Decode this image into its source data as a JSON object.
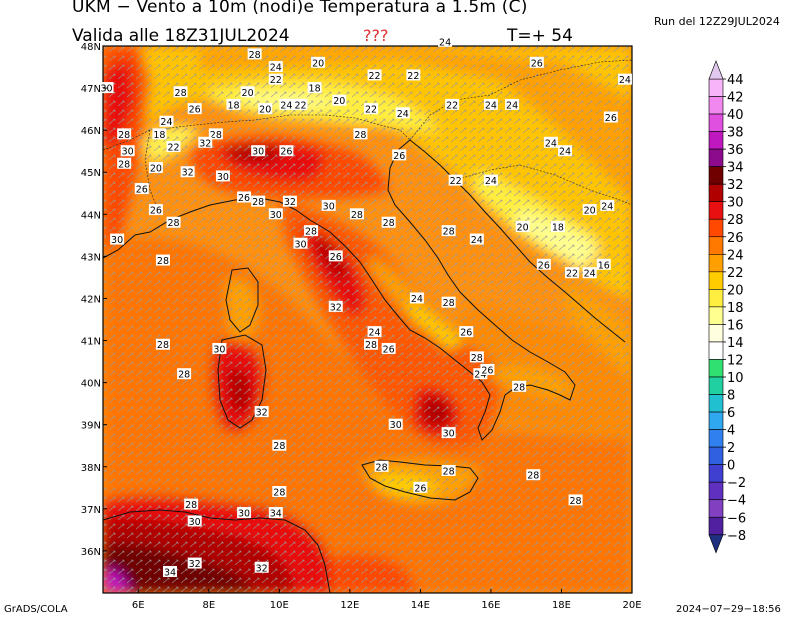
{
  "header": {
    "title": "UKM − Vento a 10m (nodi)e Temperatura a 1.5m (C)",
    "valid": "Valida alle 18Z31JUL2024",
    "qqq": "???",
    "timestep": "T=+ 54",
    "run": "Run del 12Z29JUL2024"
  },
  "footer": {
    "left": "GrADS/COLA",
    "right": "2024−07−29−18:56"
  },
  "map": {
    "lon_range": [
      5,
      20
    ],
    "lat_range": [
      35,
      48
    ],
    "lon_ticks": [
      "6E",
      "8E",
      "10E",
      "12E",
      "14E",
      "16E",
      "18E",
      "20E"
    ],
    "lat_ticks": [
      "48N",
      "47N",
      "46N",
      "45N",
      "44N",
      "43N",
      "42N",
      "41N",
      "40N",
      "39N",
      "38N",
      "37N",
      "36N"
    ],
    "contour_labels": [
      {
        "lon": 9.3,
        "lat": 47.8,
        "v": "28"
      },
      {
        "lon": 9.9,
        "lat": 47.5,
        "v": "24"
      },
      {
        "lon": 12.7,
        "lat": 47.3,
        "v": "22"
      },
      {
        "lon": 13.8,
        "lat": 47.3,
        "v": "22"
      },
      {
        "lon": 11.1,
        "lat": 47.6,
        "v": "20"
      },
      {
        "lon": 14.7,
        "lat": 48.1,
        "v": "24"
      },
      {
        "lon": 17.3,
        "lat": 47.6,
        "v": "26"
      },
      {
        "lon": 19.8,
        "lat": 47.2,
        "v": "24"
      },
      {
        "lon": 5.1,
        "lat": 47.0,
        "v": "30"
      },
      {
        "lon": 7.2,
        "lat": 46.9,
        "v": "28"
      },
      {
        "lon": 9.9,
        "lat": 47.2,
        "v": "22"
      },
      {
        "lon": 11.0,
        "lat": 47.0,
        "v": "18"
      },
      {
        "lon": 9.1,
        "lat": 46.9,
        "v": "20"
      },
      {
        "lon": 8.7,
        "lat": 46.6,
        "v": "18"
      },
      {
        "lon": 7.6,
        "lat": 46.5,
        "v": "26"
      },
      {
        "lon": 9.6,
        "lat": 46.5,
        "v": "20"
      },
      {
        "lon": 10.2,
        "lat": 46.6,
        "v": "24"
      },
      {
        "lon": 10.6,
        "lat": 46.6,
        "v": "22"
      },
      {
        "lon": 11.7,
        "lat": 46.7,
        "v": "20"
      },
      {
        "lon": 12.6,
        "lat": 46.5,
        "v": "22"
      },
      {
        "lon": 13.5,
        "lat": 46.4,
        "v": "24"
      },
      {
        "lon": 14.9,
        "lat": 46.6,
        "v": "22"
      },
      {
        "lon": 16.0,
        "lat": 46.6,
        "v": "24"
      },
      {
        "lon": 16.6,
        "lat": 46.6,
        "v": "24"
      },
      {
        "lon": 19.4,
        "lat": 46.3,
        "v": "26"
      },
      {
        "lon": 6.8,
        "lat": 46.2,
        "v": "24"
      },
      {
        "lon": 6.6,
        "lat": 45.9,
        "v": "18"
      },
      {
        "lon": 5.6,
        "lat": 45.9,
        "v": "28"
      },
      {
        "lon": 8.2,
        "lat": 45.9,
        "v": "28"
      },
      {
        "lon": 7.9,
        "lat": 45.7,
        "v": "32"
      },
      {
        "lon": 7.0,
        "lat": 45.6,
        "v": "22"
      },
      {
        "lon": 12.3,
        "lat": 45.9,
        "v": "28"
      },
      {
        "lon": 5.7,
        "lat": 45.5,
        "v": "30"
      },
      {
        "lon": 9.4,
        "lat": 45.5,
        "v": "30"
      },
      {
        "lon": 10.2,
        "lat": 45.5,
        "v": "26"
      },
      {
        "lon": 13.4,
        "lat": 45.4,
        "v": "26"
      },
      {
        "lon": 17.7,
        "lat": 45.7,
        "v": "24"
      },
      {
        "lon": 18.1,
        "lat": 45.5,
        "v": "24"
      },
      {
        "lon": 5.6,
        "lat": 45.2,
        "v": "28"
      },
      {
        "lon": 6.5,
        "lat": 45.1,
        "v": "20"
      },
      {
        "lon": 7.4,
        "lat": 45.0,
        "v": "32"
      },
      {
        "lon": 8.4,
        "lat": 44.9,
        "v": "30"
      },
      {
        "lon": 15.0,
        "lat": 44.8,
        "v": "22"
      },
      {
        "lon": 16.0,
        "lat": 44.8,
        "v": "24"
      },
      {
        "lon": 6.1,
        "lat": 44.6,
        "v": "26"
      },
      {
        "lon": 9.0,
        "lat": 44.4,
        "v": "26"
      },
      {
        "lon": 9.4,
        "lat": 44.3,
        "v": "28"
      },
      {
        "lon": 10.3,
        "lat": 44.3,
        "v": "32"
      },
      {
        "lon": 11.4,
        "lat": 44.2,
        "v": "30"
      },
      {
        "lon": 6.5,
        "lat": 44.1,
        "v": "26"
      },
      {
        "lon": 12.2,
        "lat": 44.0,
        "v": "28"
      },
      {
        "lon": 18.8,
        "lat": 44.1,
        "v": "20"
      },
      {
        "lon": 19.3,
        "lat": 44.2,
        "v": "24"
      },
      {
        "lon": 9.9,
        "lat": 44.0,
        "v": "30"
      },
      {
        "lon": 7.0,
        "lat": 43.8,
        "v": "28"
      },
      {
        "lon": 13.1,
        "lat": 43.8,
        "v": "28"
      },
      {
        "lon": 16.9,
        "lat": 43.7,
        "v": "20"
      },
      {
        "lon": 17.9,
        "lat": 43.7,
        "v": "18"
      },
      {
        "lon": 10.9,
        "lat": 43.6,
        "v": "28"
      },
      {
        "lon": 14.8,
        "lat": 43.6,
        "v": "28"
      },
      {
        "lon": 5.4,
        "lat": 43.4,
        "v": "30"
      },
      {
        "lon": 15.6,
        "lat": 43.4,
        "v": "24"
      },
      {
        "lon": 10.6,
        "lat": 43.3,
        "v": "30"
      },
      {
        "lon": 6.7,
        "lat": 42.9,
        "v": "28"
      },
      {
        "lon": 11.6,
        "lat": 43.0,
        "v": "26"
      },
      {
        "lon": 17.5,
        "lat": 42.8,
        "v": "26"
      },
      {
        "lon": 18.3,
        "lat": 42.6,
        "v": "22"
      },
      {
        "lon": 18.8,
        "lat": 42.6,
        "v": "24"
      },
      {
        "lon": 19.2,
        "lat": 42.8,
        "v": "16"
      },
      {
        "lon": 13.9,
        "lat": 42.0,
        "v": "24"
      },
      {
        "lon": 14.8,
        "lat": 41.9,
        "v": "28"
      },
      {
        "lon": 11.6,
        "lat": 41.8,
        "v": "32"
      },
      {
        "lon": 12.7,
        "lat": 41.2,
        "v": "24"
      },
      {
        "lon": 15.3,
        "lat": 41.2,
        "v": "26"
      },
      {
        "lon": 6.7,
        "lat": 40.9,
        "v": "28"
      },
      {
        "lon": 12.6,
        "lat": 40.9,
        "v": "28"
      },
      {
        "lon": 13.1,
        "lat": 40.8,
        "v": "26"
      },
      {
        "lon": 8.3,
        "lat": 40.8,
        "v": "30"
      },
      {
        "lon": 15.6,
        "lat": 40.6,
        "v": "28"
      },
      {
        "lon": 15.7,
        "lat": 40.2,
        "v": "24"
      },
      {
        "lon": 15.9,
        "lat": 40.3,
        "v": "26"
      },
      {
        "lon": 7.3,
        "lat": 40.2,
        "v": "28"
      },
      {
        "lon": 16.8,
        "lat": 39.9,
        "v": "28"
      },
      {
        "lon": 9.5,
        "lat": 39.3,
        "v": "32"
      },
      {
        "lon": 13.3,
        "lat": 39.0,
        "v": "30"
      },
      {
        "lon": 14.8,
        "lat": 38.8,
        "v": "30"
      },
      {
        "lon": 10.0,
        "lat": 38.5,
        "v": "28"
      },
      {
        "lon": 12.9,
        "lat": 38.0,
        "v": "28"
      },
      {
        "lon": 14.8,
        "lat": 37.9,
        "v": "28"
      },
      {
        "lon": 17.2,
        "lat": 37.8,
        "v": "28"
      },
      {
        "lon": 14.0,
        "lat": 37.5,
        "v": "26"
      },
      {
        "lon": 10.0,
        "lat": 37.4,
        "v": "28"
      },
      {
        "lon": 18.4,
        "lat": 37.2,
        "v": "28"
      },
      {
        "lon": 7.5,
        "lat": 37.1,
        "v": "28"
      },
      {
        "lon": 9.0,
        "lat": 36.9,
        "v": "30"
      },
      {
        "lon": 9.9,
        "lat": 36.9,
        "v": "34"
      },
      {
        "lon": 7.6,
        "lat": 36.7,
        "v": "30"
      },
      {
        "lon": 7.6,
        "lat": 35.7,
        "v": "32"
      },
      {
        "lon": 9.5,
        "lat": 35.6,
        "v": "32"
      },
      {
        "lon": 6.9,
        "lat": 35.5,
        "v": "34"
      }
    ]
  },
  "colorbar": {
    "levels": [
      "44",
      "42",
      "40",
      "38",
      "36",
      "34",
      "32",
      "30",
      "28",
      "26",
      "24",
      "22",
      "20",
      "18",
      "16",
      "14",
      "12",
      "10",
      "8",
      "6",
      "4",
      "2",
      "0",
      "−2",
      "−4",
      "−6",
      "−8"
    ],
    "colors": [
      "#f7b4f7",
      "#f088f0",
      "#e050e0",
      "#c018c0",
      "#8c0a8c",
      "#700000",
      "#b00000",
      "#e81010",
      "#ff4800",
      "#ff7800",
      "#ffa000",
      "#ffcc00",
      "#ffee40",
      "#ffff90",
      "#ffffe0",
      "#ffffff",
      "#30e070",
      "#20d0a0",
      "#20c0d0",
      "#30a8f0",
      "#3080f0",
      "#3060e0",
      "#4040d0",
      "#6030c0",
      "#8040c0",
      "#5020a0"
    ]
  }
}
